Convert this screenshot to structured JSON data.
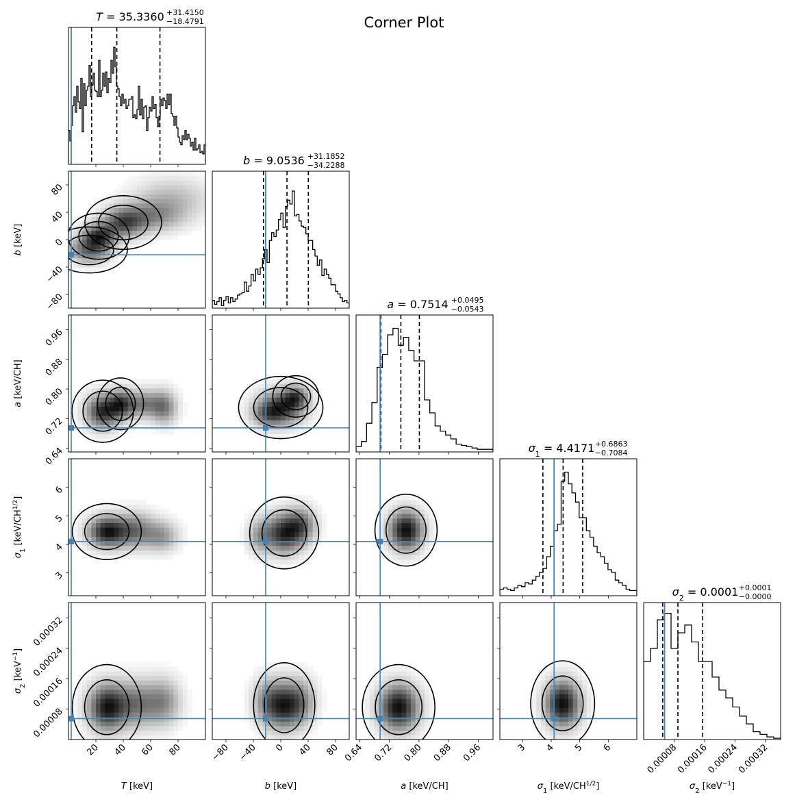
{
  "chart_data": {
    "type": "corner",
    "title": "Corner Plot",
    "truth_color": "#4682b4",
    "quantiles_shown": [
      0.16,
      0.5,
      0.84
    ],
    "parameters": [
      {
        "key": "T",
        "symbol": "T",
        "axis_label": "T [keV]",
        "label_main": "T",
        "label_unit": " [keV]",
        "label_sup": "",
        "range": [
          0,
          100
        ],
        "ticks": [
          20,
          40,
          60,
          80
        ],
        "tick_labels": [
          "20",
          "40",
          "60",
          "80"
        ],
        "truth": 2,
        "median_text": "35.3360",
        "plus": "+31.4150",
        "minus": "−18.4791",
        "quantiles": [
          16.9,
          35.3,
          66.8
        ]
      },
      {
        "key": "b",
        "symbol": "b",
        "axis_label": "b [keV]",
        "label_main": "b",
        "label_unit": " [keV]",
        "label_sup": "",
        "range": [
          -100,
          100
        ],
        "ticks": [
          -80,
          -40,
          0,
          40,
          80
        ],
        "tick_labels": [
          "−80",
          "−40",
          "0",
          "40",
          "80"
        ],
        "truth": -22,
        "median_text": "9.0536",
        "plus": "+31.1852",
        "minus": "−34.2288",
        "quantiles": [
          -25.2,
          9.1,
          40.3
        ]
      },
      {
        "key": "a",
        "symbol": "a",
        "axis_label": "a [keV/CH]",
        "label_main": "a",
        "label_unit": " [keV/CH]",
        "label_sup": "",
        "range": [
          0.63,
          1.0
        ],
        "ticks": [
          0.64,
          0.72,
          0.8,
          0.88,
          0.96
        ],
        "tick_labels": [
          "0.64",
          "0.72",
          "0.80",
          "0.88",
          "0.96"
        ],
        "truth": 0.695,
        "median_text": "0.7514",
        "plus": "+0.0495",
        "minus": "−0.0543",
        "quantiles": [
          0.697,
          0.751,
          0.801
        ]
      },
      {
        "key": "s1",
        "symbol": "σ1",
        "axis_label": "σ1 [keV/CH½]",
        "label_main": "σ",
        "label_sub": "1",
        "label_unit": " [keV/CH",
        "label_sup": "1/2",
        "label_close": "]",
        "range": [
          2.2,
          7.0
        ],
        "ticks": [
          3,
          4,
          5,
          6
        ],
        "tick_labels": [
          "3",
          "4",
          "5",
          "6"
        ],
        "truth": 4.1,
        "median_text": "4.4171",
        "plus": "+0.6863",
        "minus": "−0.7084",
        "quantiles": [
          3.709,
          4.417,
          5.103
        ]
      },
      {
        "key": "s2",
        "symbol": "σ2",
        "axis_label": "σ2 [keV−1]",
        "label_main": "σ",
        "label_sub": "2",
        "label_unit": " [keV",
        "label_sup": "−1",
        "label_close": "]",
        "range": [
          0.0,
          0.00036
        ],
        "ticks": [
          8e-05,
          0.00016,
          0.00024,
          0.00032
        ],
        "tick_labels": [
          "0.00008",
          "0.00016",
          "0.00024",
          "0.00032"
        ],
        "truth": 5.5e-05,
        "median_text": "0.0001",
        "plus": "+0.0001",
        "minus": "−0.0000",
        "quantiles": [
          5e-05,
          9e-05,
          0.000155
        ]
      }
    ],
    "histograms": {
      "T": [
        0.26,
        0.18,
        0.3,
        0.45,
        0.52,
        0.4,
        0.6,
        0.48,
        0.43,
        0.66,
        0.25,
        0.62,
        0.45,
        0.57,
        0.6,
        0.76,
        0.52,
        0.61,
        0.7,
        0.57,
        0.56,
        0.52,
        0.8,
        0.52,
        0.57,
        0.7,
        0.6,
        0.71,
        0.55,
        0.66,
        0.63,
        0.8,
        0.7,
        0.9,
        0.75,
        0.6,
        0.58,
        0.52,
        0.45,
        0.54,
        0.47,
        0.5,
        0.43,
        0.45,
        0.5,
        0.5,
        0.52,
        0.36,
        0.38,
        0.35,
        0.42,
        0.6,
        0.38,
        0.5,
        0.35,
        0.44,
        0.45,
        0.26,
        0.36,
        0.44,
        0.41,
        0.52,
        0.43,
        0.46,
        0.36,
        0.29,
        0.37,
        0.5,
        0.45,
        0.51,
        0.49,
        0.43,
        0.54,
        0.46,
        0.54,
        0.39,
        0.37,
        0.3,
        0.37,
        0.28,
        0.21,
        0.17,
        0.15,
        0.22,
        0.19,
        0.26,
        0.19,
        0.23,
        0.2,
        0.14,
        0.17,
        0.11,
        0.2,
        0.11,
        0.12,
        0.15,
        0.09,
        0.1,
        0.08,
        0.15
      ],
      "b": [
        0.06,
        0.03,
        0.05,
        0.08,
        0.02,
        0.06,
        0.09,
        0.04,
        0.08,
        0.05,
        0.07,
        0.1,
        0.11,
        0.12,
        0.2,
        0.13,
        0.17,
        0.26,
        0.21,
        0.3,
        0.26,
        0.31,
        0.38,
        0.45,
        0.35,
        0.52,
        0.58,
        0.55,
        0.6,
        0.68,
        0.73,
        0.62,
        0.78,
        0.83,
        0.8,
        0.9,
        0.71,
        0.72,
        0.67,
        0.63,
        0.62,
        0.57,
        0.52,
        0.52,
        0.45,
        0.4,
        0.33,
        0.37,
        0.25,
        0.3,
        0.26,
        0.23,
        0.18,
        0.18,
        0.13,
        0.11,
        0.08,
        0.05,
        0.06,
        0.04
      ],
      "a": [
        0.04,
        0.08,
        0.22,
        0.38,
        0.65,
        0.75,
        0.9,
        0.95,
        0.82,
        0.88,
        0.78,
        0.7,
        0.7,
        0.4,
        0.3,
        0.2,
        0.16,
        0.13,
        0.1,
        0.06,
        0.05,
        0.04,
        0.03,
        0.02,
        0.02,
        0.02
      ],
      "s1": [
        0.05,
        0.06,
        0.05,
        0.04,
        0.06,
        0.08,
        0.07,
        0.1,
        0.09,
        0.12,
        0.15,
        0.18,
        0.21,
        0.3,
        0.38,
        0.5,
        0.55,
        0.88,
        0.95,
        0.86,
        0.79,
        0.72,
        0.6,
        0.6,
        0.5,
        0.45,
        0.38,
        0.33,
        0.3,
        0.25,
        0.2,
        0.18,
        0.12,
        0.1,
        0.08,
        0.05,
        0.04,
        0.04
      ],
      "s2": [
        0.6,
        0.7,
        0.92,
        0.97,
        0.7,
        0.82,
        0.88,
        0.75,
        0.6,
        0.6,
        0.48,
        0.38,
        0.32,
        0.25,
        0.18,
        0.12,
        0.06,
        0.04,
        0.02,
        0.01
      ]
    },
    "blobs": {
      "1-0": [
        [
          22,
          5,
          8,
          12,
          1
        ],
        [
          40,
          25,
          10,
          14,
          0.8
        ],
        [
          15,
          -15,
          10,
          12,
          0.7
        ],
        [
          60,
          35,
          15,
          15,
          0.5
        ],
        [
          75,
          60,
          18,
          20,
          0.3
        ]
      ],
      "2-0": [
        [
          25,
          0.74,
          8,
          0.03,
          1
        ],
        [
          38,
          0.76,
          6,
          0.025,
          0.8
        ],
        [
          55,
          0.76,
          10,
          0.025,
          0.6
        ],
        [
          70,
          0.75,
          6,
          0.03,
          0.5
        ]
      ],
      "2-1": [
        [
          0,
          0.75,
          22,
          0.03,
          1
        ],
        [
          22,
          0.78,
          12,
          0.02,
          0.7
        ],
        [
          -20,
          0.73,
          15,
          0.02,
          0.4
        ]
      ],
      "3-0": [
        [
          28,
          4.45,
          9,
          0.35,
          1
        ],
        [
          48,
          4.5,
          10,
          0.4,
          0.6
        ],
        [
          68,
          4.3,
          8,
          0.35,
          0.4
        ]
      ],
      "3-1": [
        [
          5,
          4.4,
          18,
          0.45,
          1
        ],
        [
          30,
          4.7,
          14,
          0.4,
          0.6
        ],
        [
          -30,
          4.3,
          12,
          0.4,
          0.4
        ]
      ],
      "3-2": [
        [
          0.765,
          4.5,
          0.03,
          0.45,
          1
        ]
      ],
      "4-0": [
        [
          28,
          8.5e-05,
          9,
          4e-05,
          1
        ],
        [
          50,
          9.5e-05,
          12,
          4e-05,
          0.6
        ],
        [
          70,
          0.0001,
          8,
          4e-05,
          0.4
        ]
      ],
      "4-1": [
        [
          5,
          9e-05,
          16,
          4e-05,
          1
        ],
        [
          -20,
          0.0001,
          14,
          4e-05,
          0.5
        ],
        [
          30,
          0.0001,
          14,
          4e-05,
          0.5
        ]
      ],
      "4-2": [
        [
          0.745,
          8.5e-05,
          0.035,
          4e-05,
          1
        ]
      ],
      "4-3": [
        [
          4.4,
          9.5e-05,
          0.4,
          4e-05,
          1
        ]
      ]
    }
  }
}
